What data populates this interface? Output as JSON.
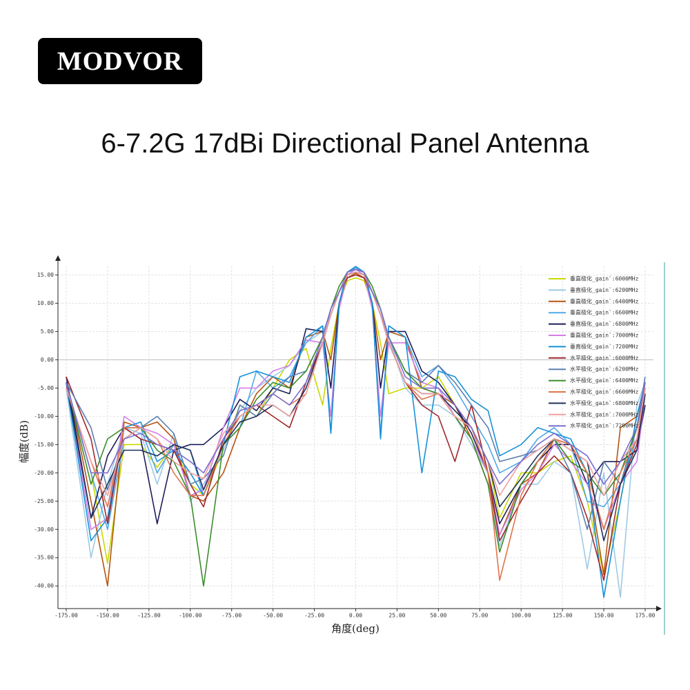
{
  "logo": "MODVOR",
  "title": "6-7.2G 17dBi Directional Panel Antenna",
  "chart_data": {
    "type": "line",
    "x_label": "角度(deg)",
    "y_label": "幅度(dB)",
    "xlim": [
      -180,
      180
    ],
    "ylim": [
      -44,
      17.5
    ],
    "grid": true,
    "xticks": [
      {
        "value": -175,
        "label": "-175.00"
      },
      {
        "value": -150,
        "label": "-150.00"
      },
      {
        "value": -125,
        "label": "-125.00"
      },
      {
        "value": -100,
        "label": "-100.00"
      },
      {
        "value": -75,
        "label": "-75.00"
      },
      {
        "value": -50,
        "label": "-50.00"
      },
      {
        "value": -25,
        "label": "-25.00"
      },
      {
        "value": 0,
        "label": "0.00"
      },
      {
        "value": 25,
        "label": "25.00"
      },
      {
        "value": 50,
        "label": "50.00"
      },
      {
        "value": 75,
        "label": "75.00"
      },
      {
        "value": 100,
        "label": "100.00"
      },
      {
        "value": 125,
        "label": "125.00"
      },
      {
        "value": 150,
        "label": "150.00"
      },
      {
        "value": 175,
        "label": "175.00"
      }
    ],
    "yticks": [
      {
        "value": 15,
        "label": "15.00"
      },
      {
        "value": 10,
        "label": "10.00"
      },
      {
        "value": 5,
        "label": "5.00"
      },
      {
        "value": 0,
        "label": "0.00"
      },
      {
        "value": -5,
        "label": "-5.00"
      },
      {
        "value": -10,
        "label": "-10.00"
      },
      {
        "value": -15,
        "label": "-15.00"
      },
      {
        "value": -20,
        "label": "-20.00"
      },
      {
        "value": -25,
        "label": "-25.00"
      },
      {
        "value": -30,
        "label": "-30.00"
      },
      {
        "value": -35,
        "label": "-35.00"
      },
      {
        "value": -40,
        "label": "-40.00"
      }
    ],
    "x": [
      -175,
      -160,
      -150,
      -140,
      -130,
      -120,
      -110,
      -100,
      -92,
      -80,
      -70,
      -60,
      -50,
      -40,
      -30,
      -20,
      -15,
      -10,
      -5,
      0,
      5,
      10,
      15,
      20,
      30,
      40,
      50,
      60,
      70,
      80,
      87,
      100,
      110,
      120,
      130,
      140,
      150,
      160,
      170,
      175
    ],
    "series": [
      {
        "name": "垂直极化_gain`:6000MHz",
        "color": "#c8d800",
        "values": [
          -4,
          -20,
          -36,
          -15,
          -15,
          -19,
          -15,
          -22,
          -24,
          -16,
          -8,
          -10,
          -5,
          0,
          2,
          -8,
          2,
          10,
          14,
          14.5,
          14,
          10,
          3,
          -6,
          -5,
          -5,
          -3,
          -8,
          -12,
          -18,
          -28,
          -20,
          -20,
          -18,
          -17,
          -25,
          -38,
          -25,
          -10,
          -5
        ]
      },
      {
        "name": "垂直极化_gain`:6200MHz",
        "color": "#9ec9e6",
        "values": [
          -5,
          -35,
          -22,
          -12,
          -13,
          -22,
          -13,
          -25,
          -22,
          -16,
          -9,
          -5,
          -3,
          -1,
          3,
          5,
          8,
          12,
          15,
          15.5,
          15,
          12,
          8,
          4,
          -5,
          -8,
          -8,
          -10,
          -15,
          -20,
          -33,
          -22,
          -22,
          -18,
          -20,
          -37,
          -20,
          -42,
          -8,
          -4
        ]
      },
      {
        "name": "垂直极化_gain`:6400MHz",
        "color": "#b5530e",
        "values": [
          -3,
          -25,
          -40,
          -11,
          -12,
          -11,
          -14,
          -24,
          -25,
          -20,
          -12,
          -6,
          -3,
          -5,
          4,
          5,
          0,
          10,
          14.5,
          15.3,
          14.5,
          10,
          0,
          5,
          4,
          -5,
          -6,
          -8,
          -14,
          -22,
          -31,
          -22,
          -20,
          -14,
          -15,
          -20,
          -38,
          -12,
          -10,
          -4
        ]
      },
      {
        "name": "垂直极化_gain`:6600MHz",
        "color": "#4fa7e8",
        "values": [
          -4,
          -20,
          -30,
          -14,
          -12,
          -20,
          -15,
          -16,
          -24,
          -15,
          -12,
          -2,
          -5,
          -3,
          3,
          6,
          -13,
          10,
          15.5,
          16.3,
          15.5,
          10,
          -13,
          6,
          4,
          -3,
          -1,
          -5,
          -10,
          -15,
          -20,
          -18,
          -14,
          -12,
          -15,
          -25,
          -26,
          -22,
          -14,
          -5
        ]
      },
      {
        "name": "垂直极化_gain`:6800MHz",
        "color": "#1c1c5a",
        "values": [
          -3,
          -28,
          -17,
          -12,
          -14,
          -29,
          -16,
          -15,
          -15,
          -12,
          -7,
          -9,
          -5,
          -6,
          5.5,
          5,
          -5,
          10,
          15.5,
          16,
          15.5,
          10,
          -5,
          5,
          5,
          -2,
          -4,
          -8,
          -13,
          -20,
          -29,
          -22,
          -18,
          -15,
          -15,
          -22,
          -18,
          -18,
          -16,
          -8
        ]
      },
      {
        "name": "垂直极化_gain`:7000MHz",
        "color": "#d37ee6",
        "values": [
          -4,
          -30,
          -28,
          -10,
          -12,
          -13,
          -15,
          -24,
          -23,
          -12,
          -5,
          -5,
          -2,
          -1,
          3.5,
          3,
          -10,
          9,
          15,
          16,
          15,
          9,
          -10,
          3,
          3,
          -4,
          -5,
          -10,
          -14,
          -20,
          -31,
          -23,
          -20,
          -15,
          -18,
          -22,
          -30,
          -22,
          -18,
          -6
        ]
      },
      {
        "name": "垂直极化_gain`:7200MHz",
        "color": "#1591d8",
        "values": [
          -4,
          -32,
          -28,
          -12,
          -11,
          -18,
          -16,
          -20,
          -24,
          -15,
          -3,
          -2,
          -3,
          -4,
          4,
          6,
          -13,
          10,
          15.5,
          16.5,
          15.5,
          10,
          -14,
          6,
          4,
          -20,
          -2,
          -3,
          -7,
          -9,
          -17,
          -15,
          -12,
          -13,
          -14,
          -20,
          -42,
          -25,
          -10,
          -4
        ]
      },
      {
        "name": "水平极化_gain`:6000MHz",
        "color": "#a0282c",
        "values": [
          -3,
          -14,
          -29,
          -12,
          -14,
          -15,
          -16,
          -22,
          -26,
          -14,
          -10,
          -8,
          -10,
          -12,
          -4,
          3,
          8,
          12,
          14.5,
          15,
          14.5,
          12,
          8,
          3,
          -4,
          -8,
          -10,
          -18,
          -8,
          -20,
          -32,
          -25,
          -20,
          -17,
          -20,
          -28,
          -39,
          -22,
          -15,
          -5
        ]
      },
      {
        "name": "水平极化_gain`:6200MHz",
        "color": "#5a7fb0",
        "values": [
          -4,
          -12,
          -23,
          -14,
          -12,
          -10,
          -13,
          -22,
          -21,
          -17,
          -8,
          -10,
          -6,
          -3,
          -2,
          4,
          9,
          12,
          15,
          15.5,
          15,
          12,
          9,
          4,
          -2,
          -4,
          -1,
          -4,
          -8,
          -12,
          -18,
          -17,
          -16,
          -14,
          -20,
          -30,
          -18,
          -22,
          -12,
          -3
        ]
      },
      {
        "name": "水平极化_gain`:6400MHz",
        "color": "#3a8c2a",
        "values": [
          -4,
          -22,
          -14,
          -12,
          -12,
          -16,
          -18,
          -24,
          -40,
          -15,
          -12,
          -7,
          -4,
          -5,
          -2,
          4,
          9,
          13,
          15.5,
          16,
          15.5,
          13,
          9,
          4,
          -2,
          -5,
          -6,
          -10,
          -14,
          -22,
          -34,
          -22,
          -18,
          -14,
          -18,
          -20,
          -24,
          -20,
          -12,
          -5
        ]
      },
      {
        "name": "水平极化_gain`:6600MHz",
        "color": "#e0744a",
        "values": [
          -5,
          -18,
          -26,
          -12,
          -12,
          -14,
          -20,
          -24,
          -24,
          -15,
          -10,
          -8,
          -6,
          -8,
          -6,
          3,
          8,
          12,
          15,
          15.5,
          15,
          12,
          8,
          3,
          -4,
          -7,
          -6,
          -10,
          -12,
          -20,
          -39,
          -24,
          -18,
          -14,
          -15,
          -20,
          -30,
          -20,
          -14,
          -4
        ]
      },
      {
        "name": "水平极化_gain`:6800MHz",
        "color": "#20305a",
        "values": [
          -4,
          -28,
          -22,
          -16,
          -16,
          -17,
          -15,
          -16,
          -23,
          -15,
          -11,
          -10,
          -8,
          -10,
          -5,
          3,
          8,
          12,
          15,
          15.5,
          15,
          12,
          8,
          3,
          -4,
          -6,
          -6,
          -9,
          -12,
          -18,
          -26,
          -21,
          -17,
          -14,
          -16,
          -18,
          -32,
          -22,
          -16,
          -6
        ]
      },
      {
        "name": "水平极化_gain`:7000MHz",
        "color": "#f0a0a0",
        "values": [
          -5,
          -18,
          -24,
          -14,
          -12,
          -14,
          -18,
          -20,
          -21,
          -13,
          -10,
          -8,
          -8,
          -10,
          -6,
          3,
          8,
          12,
          15,
          15.5,
          15,
          12,
          8,
          3,
          -4,
          -6,
          -6,
          -10,
          -12,
          -18,
          -24,
          -18,
          -16,
          -14,
          -16,
          -18,
          -24,
          -18,
          -14,
          -5
        ]
      },
      {
        "name": "水平极化_gain`:7200MHz",
        "color": "#7a6ed0",
        "values": [
          -4,
          -20,
          -20,
          -14,
          -13,
          -15,
          -16,
          -18,
          -20,
          -14,
          -9,
          -8,
          -6,
          -8,
          -4,
          4,
          9,
          12,
          15.5,
          16,
          15.5,
          12,
          9,
          4,
          -3,
          -5,
          -5,
          -8,
          -12,
          -18,
          -22,
          -18,
          -15,
          -13,
          -15,
          -17,
          -22,
          -18,
          -12,
          -4
        ]
      }
    ]
  }
}
